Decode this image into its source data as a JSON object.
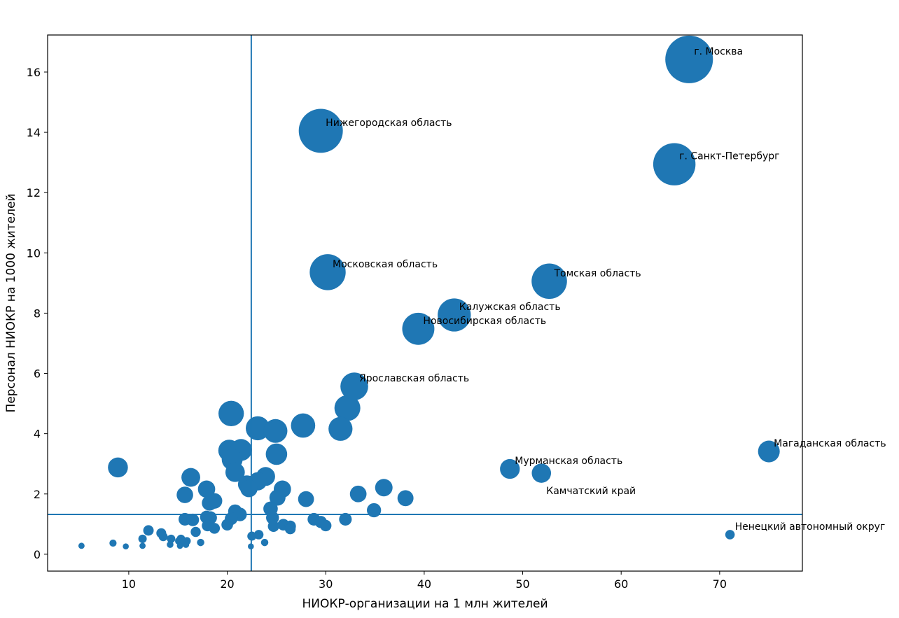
{
  "chart_data": {
    "type": "scatter",
    "title": "",
    "xlabel": "НИОКР-организации на 1 млн жителей",
    "ylabel": "Персонал НИОКР на 1000 жителей",
    "xlim": [
      1.76,
      78.4
    ],
    "ylim": [
      -0.56,
      17.23
    ],
    "xticks": [
      10,
      20,
      30,
      40,
      50,
      60,
      70
    ],
    "yticks": [
      0,
      2,
      4,
      6,
      8,
      10,
      12,
      14,
      16
    ],
    "grid": false,
    "color": "#1f77b4",
    "size_encoding": "marker area proportional to y",
    "reference_lines": {
      "vertical_x": 22.44,
      "horizontal_y": 1.32
    },
    "labeled_points": [
      {
        "label": "г. Москва",
        "x": 66.9,
        "y": 16.42
      },
      {
        "label": "Нижегородская область",
        "x": 29.5,
        "y": 14.05
      },
      {
        "label": "г. Санкт-Петербург",
        "x": 65.4,
        "y": 12.94
      },
      {
        "label": "Московская область",
        "x": 30.2,
        "y": 9.36
      },
      {
        "label": "Томская область",
        "x": 52.7,
        "y": 9.06
      },
      {
        "label": "Калужская область",
        "x": 43.05,
        "y": 7.94
      },
      {
        "label": "Новосибирская область",
        "x": 39.4,
        "y": 7.48
      },
      {
        "label": "Ярославская область",
        "x": 32.9,
        "y": 5.57
      },
      {
        "label": "Магаданская область",
        "x": 75.0,
        "y": 3.41
      },
      {
        "label": "Мурманская область",
        "x": 48.7,
        "y": 2.83
      },
      {
        "label": "Камчатский край",
        "x": 51.9,
        "y": 2.69
      },
      {
        "label": "Ненецкий автономный округ",
        "x": 71.05,
        "y": 0.65
      }
    ],
    "points": [
      [
        32.2,
        4.85
      ],
      [
        31.5,
        4.16
      ],
      [
        27.7,
        4.27
      ],
      [
        20.4,
        4.67
      ],
      [
        23.1,
        4.18
      ],
      [
        24.9,
        4.09
      ],
      [
        20.2,
        3.44
      ],
      [
        21.4,
        3.46
      ],
      [
        20.5,
        3.14
      ],
      [
        25.0,
        3.32
      ],
      [
        8.9,
        2.88
      ],
      [
        16.3,
        2.55
      ],
      [
        20.8,
        2.72
      ],
      [
        23.9,
        2.58
      ],
      [
        22.0,
        2.32
      ],
      [
        23.1,
        2.42
      ],
      [
        22.2,
        2.18
      ],
      [
        25.6,
        2.16
      ],
      [
        17.9,
        2.16
      ],
      [
        35.9,
        2.21
      ],
      [
        15.7,
        1.97
      ],
      [
        33.3,
        2.0
      ],
      [
        38.1,
        1.86
      ],
      [
        25.1,
        1.88
      ],
      [
        28.0,
        1.83
      ],
      [
        18.2,
        1.7
      ],
      [
        18.7,
        1.77
      ],
      [
        34.9,
        1.46
      ],
      [
        24.4,
        1.51
      ],
      [
        20.8,
        1.42
      ],
      [
        21.3,
        1.32
      ],
      [
        17.9,
        1.23
      ],
      [
        18.3,
        1.21
      ],
      [
        20.4,
        1.18
      ],
      [
        15.7,
        1.16
      ],
      [
        16.5,
        1.14
      ],
      [
        24.6,
        1.21
      ],
      [
        32.0,
        1.16
      ],
      [
        28.8,
        1.16
      ],
      [
        29.5,
        1.07
      ],
      [
        18.0,
        0.95
      ],
      [
        18.7,
        0.86
      ],
      [
        20.0,
        0.98
      ],
      [
        25.7,
        0.98
      ],
      [
        26.4,
        0.93
      ],
      [
        24.7,
        0.93
      ],
      [
        30.0,
        0.95
      ],
      [
        26.4,
        0.84
      ],
      [
        12.0,
        0.79
      ],
      [
        16.8,
        0.74
      ],
      [
        13.3,
        0.7
      ],
      [
        22.5,
        0.6
      ],
      [
        23.2,
        0.65
      ],
      [
        11.4,
        0.51
      ],
      [
        13.5,
        0.58
      ],
      [
        14.3,
        0.51
      ],
      [
        15.1,
        0.44
      ],
      [
        15.3,
        0.51
      ],
      [
        15.9,
        0.44
      ],
      [
        15.6,
        0.42
      ],
      [
        23.8,
        0.39
      ],
      [
        17.3,
        0.39
      ],
      [
        8.4,
        0.37
      ],
      [
        14.2,
        0.32
      ],
      [
        15.2,
        0.28
      ],
      [
        15.8,
        0.32
      ],
      [
        11.4,
        0.28
      ],
      [
        9.7,
        0.26
      ],
      [
        5.2,
        0.28
      ],
      [
        22.4,
        0.26
      ]
    ]
  }
}
